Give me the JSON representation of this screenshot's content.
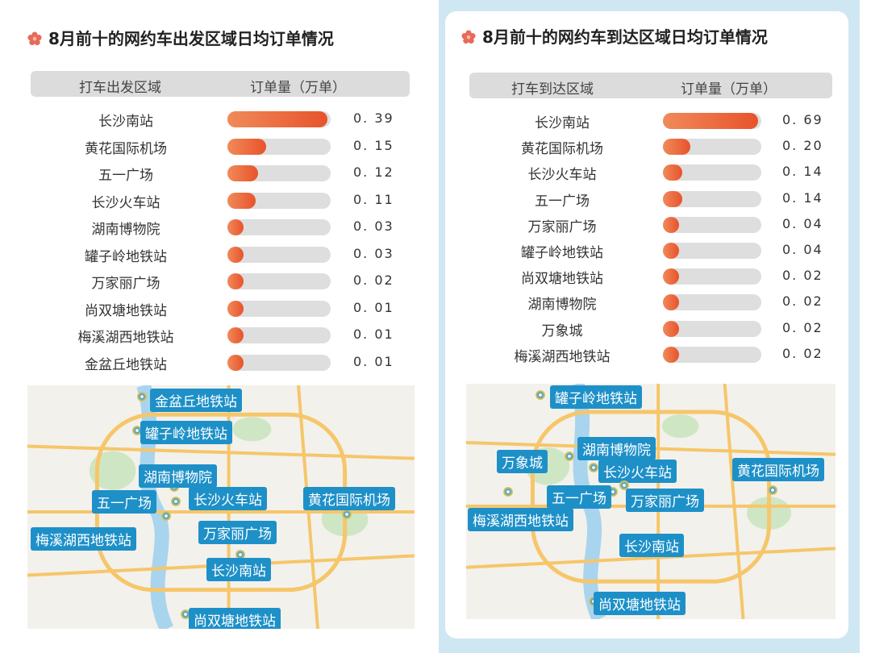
{
  "chart_data": [
    {
      "type": "bar",
      "title": "8月前十的网约车出发区域日均订单情况",
      "col_area": "打车出发区域",
      "col_value": "订单量（万单）",
      "categories": [
        "长沙南站",
        "黄花国际机场",
        "五一广场",
        "长沙火车站",
        "湖南博物院",
        "罐子岭地铁站",
        "万家丽广场",
        "尚双塘地铁站",
        "梅溪湖西地铁站",
        "金盆丘地铁站"
      ],
      "values": [
        0.39,
        0.15,
        0.12,
        0.11,
        0.03,
        0.03,
        0.02,
        0.01,
        0.01,
        0.01
      ],
      "value_labels": [
        "0. 39",
        "0. 15",
        "0. 12",
        "0. 11",
        "0. 03",
        "0. 03",
        "0. 02",
        "0. 01",
        "0. 01",
        "0. 01"
      ],
      "max": 0.39
    },
    {
      "type": "bar",
      "title": "8月前十的网约车到达区域日均订单情况",
      "col_area": "打车到达区域",
      "col_value": "订单量（万单）",
      "categories": [
        "长沙南站",
        "黄花国际机场",
        "长沙火车站",
        "五一广场",
        "万家丽广场",
        "罐子岭地铁站",
        "尚双塘地铁站",
        "湖南博物院",
        "万象城",
        "梅溪湖西地铁站"
      ],
      "values": [
        0.69,
        0.2,
        0.14,
        0.14,
        0.04,
        0.04,
        0.02,
        0.02,
        0.02,
        0.02
      ],
      "value_labels": [
        "0. 69",
        "0. 20",
        "0. 14",
        "0. 14",
        "0. 04",
        "0. 04",
        "0. 02",
        "0. 02",
        "0. 02",
        "0. 02"
      ],
      "max": 0.69
    }
  ],
  "maps": [
    {
      "labels": [
        "金盆丘地铁站",
        "罐子岭地铁站",
        "湖南博物院",
        "五一广场",
        "长沙火车站",
        "黄花国际机场",
        "梅溪湖西地铁站",
        "万家丽广场",
        "长沙南站",
        "尚双塘地铁站"
      ]
    },
    {
      "labels": [
        "罐子岭地铁站",
        "湖南博物院",
        "万象城",
        "长沙火车站",
        "黄花国际机场",
        "五一广场",
        "万家丽广场",
        "梅溪湖西地铁站",
        "长沙南站",
        "尚双塘地铁站"
      ]
    }
  ],
  "colors": {
    "bar": "#e8532b",
    "track": "#dedede",
    "pin": "#1e90c8",
    "right_bg": "#cfe7f3"
  },
  "icons": {
    "title": "flower-icon"
  }
}
